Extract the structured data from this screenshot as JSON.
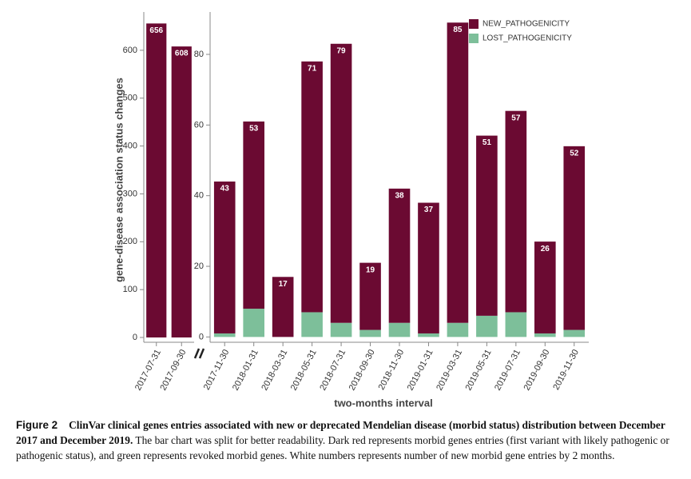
{
  "chart_data": [
    {
      "type": "bar",
      "y_label": "gene-disease association status changes",
      "categories": [
        "2017-07-31",
        "2017-09-30"
      ],
      "series": [
        {
          "name": "NEW_PATHOGENICITY",
          "color": "#6b0a32",
          "values": [
            656,
            608
          ]
        }
      ],
      "ylim": [
        -10,
        680
      ],
      "yticks": [
        0,
        100,
        200,
        300,
        400,
        500,
        600
      ],
      "legend": false
    },
    {
      "type": "bar",
      "x_label": "two-months interval",
      "categories": [
        "2017-11-30",
        "2018-01-31",
        "2018-03-31",
        "2018-05-31",
        "2018-07-31",
        "2018-09-30",
        "2018-11-30",
        "2019-01-31",
        "2019-03-31",
        "2019-05-31",
        "2019-07-31",
        "2019-09-30",
        "2019-11-30"
      ],
      "series": [
        {
          "name": "NEW_PATHOGENICITY",
          "color": "#6b0a32",
          "values": [
            43,
            53,
            17,
            71,
            79,
            19,
            38,
            37,
            85,
            51,
            57,
            26,
            52
          ]
        },
        {
          "name": "LOST_PATHOGENICITY",
          "color": "#7dbf9a",
          "values": [
            1,
            8,
            0,
            7,
            4,
            2,
            4,
            1,
            4,
            6,
            7,
            1,
            2
          ]
        }
      ],
      "ylim": [
        -1.5,
        92
      ],
      "yticks": [
        0,
        20,
        40,
        60,
        80
      ],
      "legend": "upper right"
    }
  ],
  "caption": {
    "figure_label": "Figure 2",
    "title": "ClinVar clinical genes entries associated with new or deprecated Mendelian disease (morbid status) distribution between December 2017 and December 2019.",
    "body": "The bar chart was split for better readability. Dark red represents morbid genes entries (first variant with likely pathogenic or pathogenic status), and green represents revoked morbid genes. White numbers represents number of new morbid gene entries by 2 months."
  }
}
